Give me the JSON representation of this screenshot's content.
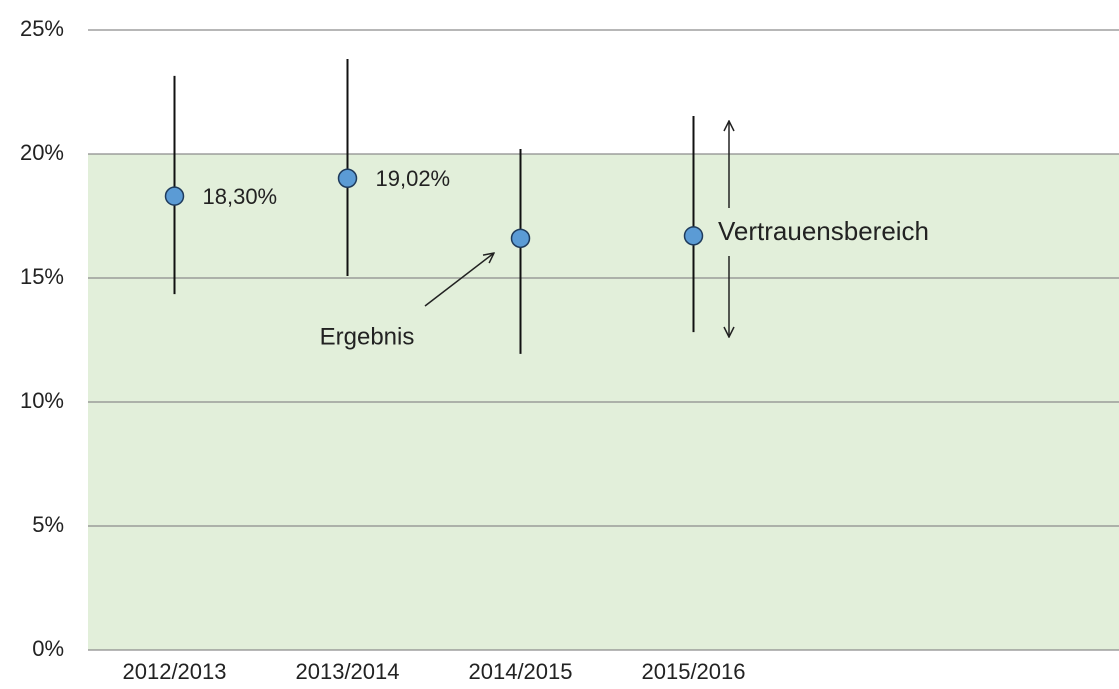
{
  "chart_data": {
    "type": "errorbar",
    "categories": [
      "2012/2013",
      "2013/2014",
      "2014/2015",
      "2015/2016"
    ],
    "series": [
      {
        "color": "#5b9bd5",
        "values": [
          18.3,
          19.02,
          16.6,
          16.7
        ],
        "low": [
          14.35,
          15.08,
          11.94,
          12.82
        ],
        "high": [
          23.15,
          23.83,
          20.2,
          21.53
        ],
        "value_labels": [
          "18,30%",
          "19,02%",
          null,
          null
        ]
      }
    ],
    "ylim": [
      0,
      25
    ],
    "yticks": [
      {
        "value": 0,
        "label": "0%"
      },
      {
        "value": 5,
        "label": "5%"
      },
      {
        "value": 10,
        "label": "10%"
      },
      {
        "value": 15,
        "label": "15%"
      },
      {
        "value": 20,
        "label": "20%"
      },
      {
        "value": 25,
        "label": "25%"
      }
    ],
    "grid": true,
    "reference_range": {
      "range": [
        0,
        20
      ],
      "color": "#e2efda"
    },
    "annotations": [
      "Ergebnis",
      "Vertrauensbereich"
    ]
  }
}
